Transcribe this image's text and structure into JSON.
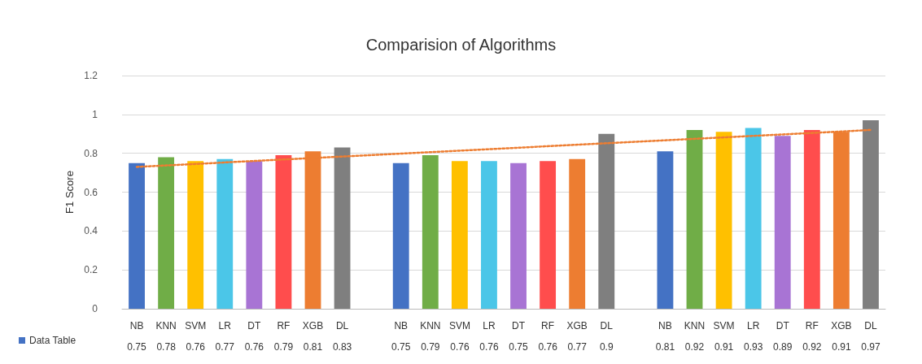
{
  "chart_data": {
    "type": "bar",
    "title": "Comparision of Algorithms",
    "ylabel": "F1 Score",
    "categories": [
      "NB",
      "KNN",
      "SVM",
      "LR",
      "DT",
      "RF",
      "XGB",
      "DL",
      null,
      "NB",
      "KNN",
      "SVM",
      "LR",
      "DT",
      "RF",
      "XGB",
      "DL",
      null,
      "NB",
      "KNN",
      "SVM",
      "LR",
      "DT",
      "RF",
      "XGB",
      "DL"
    ],
    "series": [
      {
        "name": "Data Table",
        "color": "#4472c4",
        "values": [
          0.75,
          0.78,
          0.76,
          0.77,
          0.76,
          0.79,
          0.81,
          0.83,
          null,
          0.75,
          0.79,
          0.76,
          0.76,
          0.75,
          0.76,
          0.77,
          0.9,
          null,
          0.81,
          0.92,
          0.91,
          0.93,
          0.89,
          0.92,
          0.91,
          0.97
        ],
        "value_labels": [
          "0.75",
          "0.78",
          "0.76",
          "0.77",
          "0.76",
          "0.79",
          "0.81",
          "0.83",
          null,
          "0.75",
          "0.79",
          "0.76",
          "0.76",
          "0.75",
          "0.76",
          "0.77",
          "0.9",
          null,
          "0.81",
          "0.92",
          "0.91",
          "0.93",
          "0.89",
          "0.92",
          "0.91",
          "0.97"
        ],
        "colors": [
          "#4472c4",
          "#70ad47",
          "#ffc000",
          "#4bc6e8",
          "#a874d4",
          "#ff4d4d",
          "#ed7d31",
          "#7f7f7f",
          "#ffffff",
          "#4472c4",
          "#70ad47",
          "#ffc000",
          "#4bc6e8",
          "#a874d4",
          "#ff4d4d",
          "#ed7d31",
          "#7f7f7f",
          "#ffffff",
          "#4472c4",
          "#70ad47",
          "#ffc000",
          "#4bc6e8",
          "#a874d4",
          "#ff4d4d",
          "#ed7d31",
          "#7f7f7f"
        ]
      },
      {
        "type": "line",
        "color": "#ed7d31",
        "line_style": "dotted",
        "marker": "none",
        "values": [
          0.73,
          null,
          null,
          null,
          null,
          null,
          null,
          null,
          null,
          null,
          null,
          null,
          null,
          null,
          null,
          null,
          null,
          null,
          null,
          null,
          null,
          null,
          null,
          null,
          null,
          0.92
        ]
      }
    ],
    "ylim": [
      0,
      1.2
    ],
    "yticks": [
      0,
      0.2,
      0.4,
      0.6,
      0.8,
      1,
      1.2
    ],
    "grid": "y",
    "legend": "bottom left"
  }
}
